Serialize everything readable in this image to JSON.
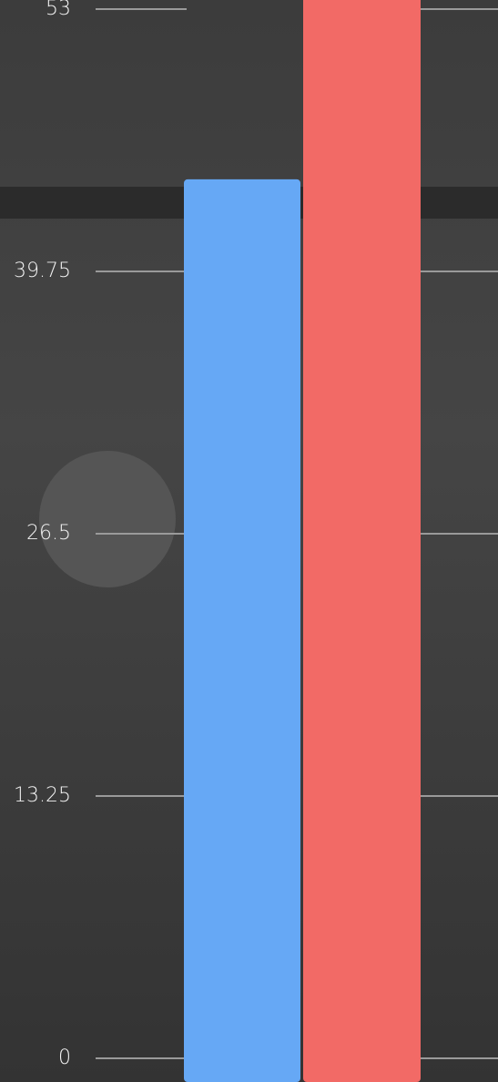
{
  "chart_data": {
    "type": "bar",
    "categories": [
      null,
      null
    ],
    "values": [
      44.4,
      56
    ],
    "colors": [
      "#66a8f5",
      "#f26a66"
    ],
    "ylim": [
      0,
      53
    ],
    "yticks": [
      0,
      13.25,
      26.5,
      39.75,
      53
    ],
    "grid": true
  }
}
